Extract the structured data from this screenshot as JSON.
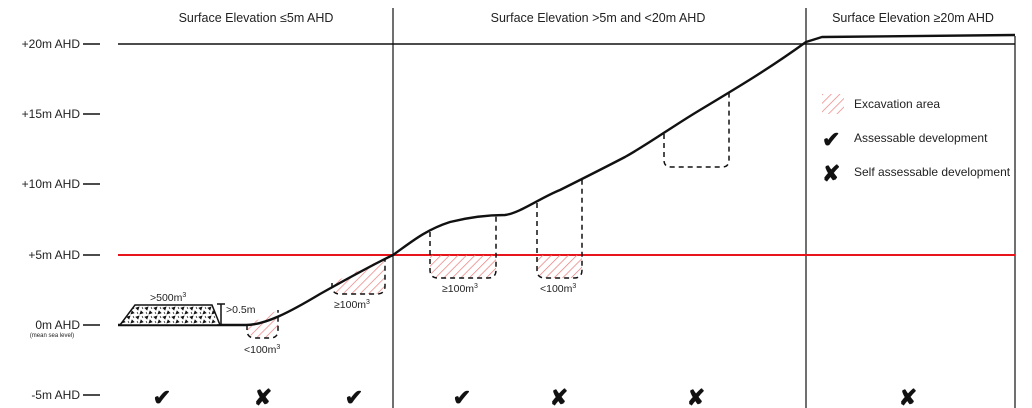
{
  "headers": {
    "left": "Surface Elevation ≤5m AHD",
    "middle": "Surface Elevation >5m and <20m AHD",
    "right": "Surface Elevation ≥20m AHD"
  },
  "axis_labels": {
    "plus20": "+20m AHD",
    "plus15": "+15m AHD",
    "plus10": "+10m AHD",
    "plus5": "+5m AHD",
    "zero": "0m AHD",
    "zero_note": "(mean sea level)",
    "minus5": "-5m AHD"
  },
  "annotations": {
    "stockpile_volume": ">500m",
    "stockpile_height": ">0.5m",
    "exc1": "<100m",
    "exc2": "≥100m",
    "exc3": "≥100m",
    "exc4": "<100m",
    "sup": "3"
  },
  "legend": {
    "excavation": "Excavation area",
    "assessable": "Assessable development",
    "self_assessable": "Self assessable development"
  },
  "bottom_marks": {
    "m1": "✔",
    "m2": "✘",
    "m3": "✔",
    "m4": "✔",
    "m5": "✘",
    "m6": "✘",
    "m7": "✘"
  },
  "colors": {
    "five_metre_line": "#e8141c",
    "hatch": "#e87a78",
    "ink": "#111111"
  }
}
